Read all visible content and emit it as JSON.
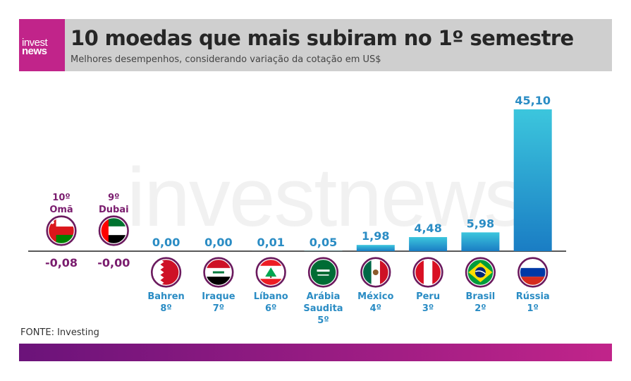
{
  "header": {
    "logo_line1": "invest",
    "logo_line2": "news",
    "title": "10 moedas que mais subiram no 1º semestre",
    "subtitle": "Melhores desempenhos, considerando variação da cotação em US$"
  },
  "watermark": "investnews",
  "source": "FONTE: Investing",
  "colors": {
    "positive_label": "#2a8cc4",
    "negative_label": "#7a1c6e",
    "bar_top": "#3cc6dd",
    "bar_bottom": "#1a7dc4",
    "brand": "#c1248a"
  },
  "chart_data": {
    "type": "bar",
    "categories": [
      "Omã",
      "Dubai",
      "Bahren",
      "Iraque",
      "Líbano",
      "Arábia Saudita",
      "México",
      "Peru",
      "Brasil",
      "Rússia"
    ],
    "values": [
      -0.08,
      -0.0,
      0.0,
      0.0,
      0.01,
      0.05,
      1.98,
      4.48,
      5.98,
      45.1
    ],
    "value_labels": [
      "-0,08",
      "-0,00",
      "0,00",
      "0,00",
      "0,01",
      "0,05",
      "1,98",
      "4,48",
      "5,98",
      "45,10"
    ],
    "ranks": [
      "10º",
      "9º",
      "8º",
      "7º",
      "6º",
      "5º",
      "4º",
      "3º",
      "2º",
      "1º"
    ],
    "name_lines": [
      [
        "Omã"
      ],
      [
        "Dubai"
      ],
      [
        "Bahren"
      ],
      [
        "Iraque"
      ],
      [
        "Líbano"
      ],
      [
        "Arábia",
        "Saudita"
      ],
      [
        "México"
      ],
      [
        "Peru"
      ],
      [
        "Brasil"
      ],
      [
        "Rússia"
      ]
    ],
    "flags": [
      "oman-flag-icon",
      "uae-flag-icon",
      "bahrain-flag-icon",
      "iraq-flag-icon",
      "lebanon-flag-icon",
      "saudi-arabia-flag-icon",
      "mexico-flag-icon",
      "peru-flag-icon",
      "brazil-flag-icon",
      "russia-flag-icon"
    ],
    "title": "10 moedas que mais subiram no 1º semestre",
    "xlabel": "",
    "ylabel": "",
    "ylim": [
      0,
      45.1
    ],
    "grid": false,
    "legend": "none"
  }
}
